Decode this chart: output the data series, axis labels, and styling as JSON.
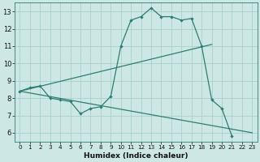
{
  "xlabel": "Humidex (Indice chaleur)",
  "bg_color": "#cde8e4",
  "line_color": "#2e7d72",
  "grid_color": "#aacfcb",
  "xlim": [
    -0.5,
    23.5
  ],
  "ylim": [
    5.5,
    13.5
  ],
  "yticks": [
    6,
    7,
    8,
    9,
    10,
    11,
    12,
    13
  ],
  "xticks": [
    0,
    1,
    2,
    3,
    4,
    5,
    6,
    7,
    8,
    9,
    10,
    11,
    12,
    13,
    14,
    15,
    16,
    17,
    18,
    19,
    20,
    21,
    22,
    23
  ],
  "line1_x": [
    0,
    1,
    2,
    3,
    4,
    5,
    6,
    7,
    8,
    9,
    10,
    11,
    12,
    13,
    14,
    15,
    16,
    17,
    18,
    19,
    20,
    21
  ],
  "line1_y": [
    8.4,
    8.6,
    8.7,
    8.0,
    7.9,
    7.8,
    7.1,
    7.4,
    7.5,
    8.1,
    11.0,
    12.5,
    12.7,
    13.2,
    12.7,
    12.7,
    12.5,
    12.6,
    11.0,
    7.9,
    7.4,
    5.8
  ],
  "line2_x": [
    0,
    19
  ],
  "line2_y": [
    8.4,
    11.1
  ],
  "line3_x": [
    0,
    23
  ],
  "line3_y": [
    8.4,
    6.0
  ]
}
